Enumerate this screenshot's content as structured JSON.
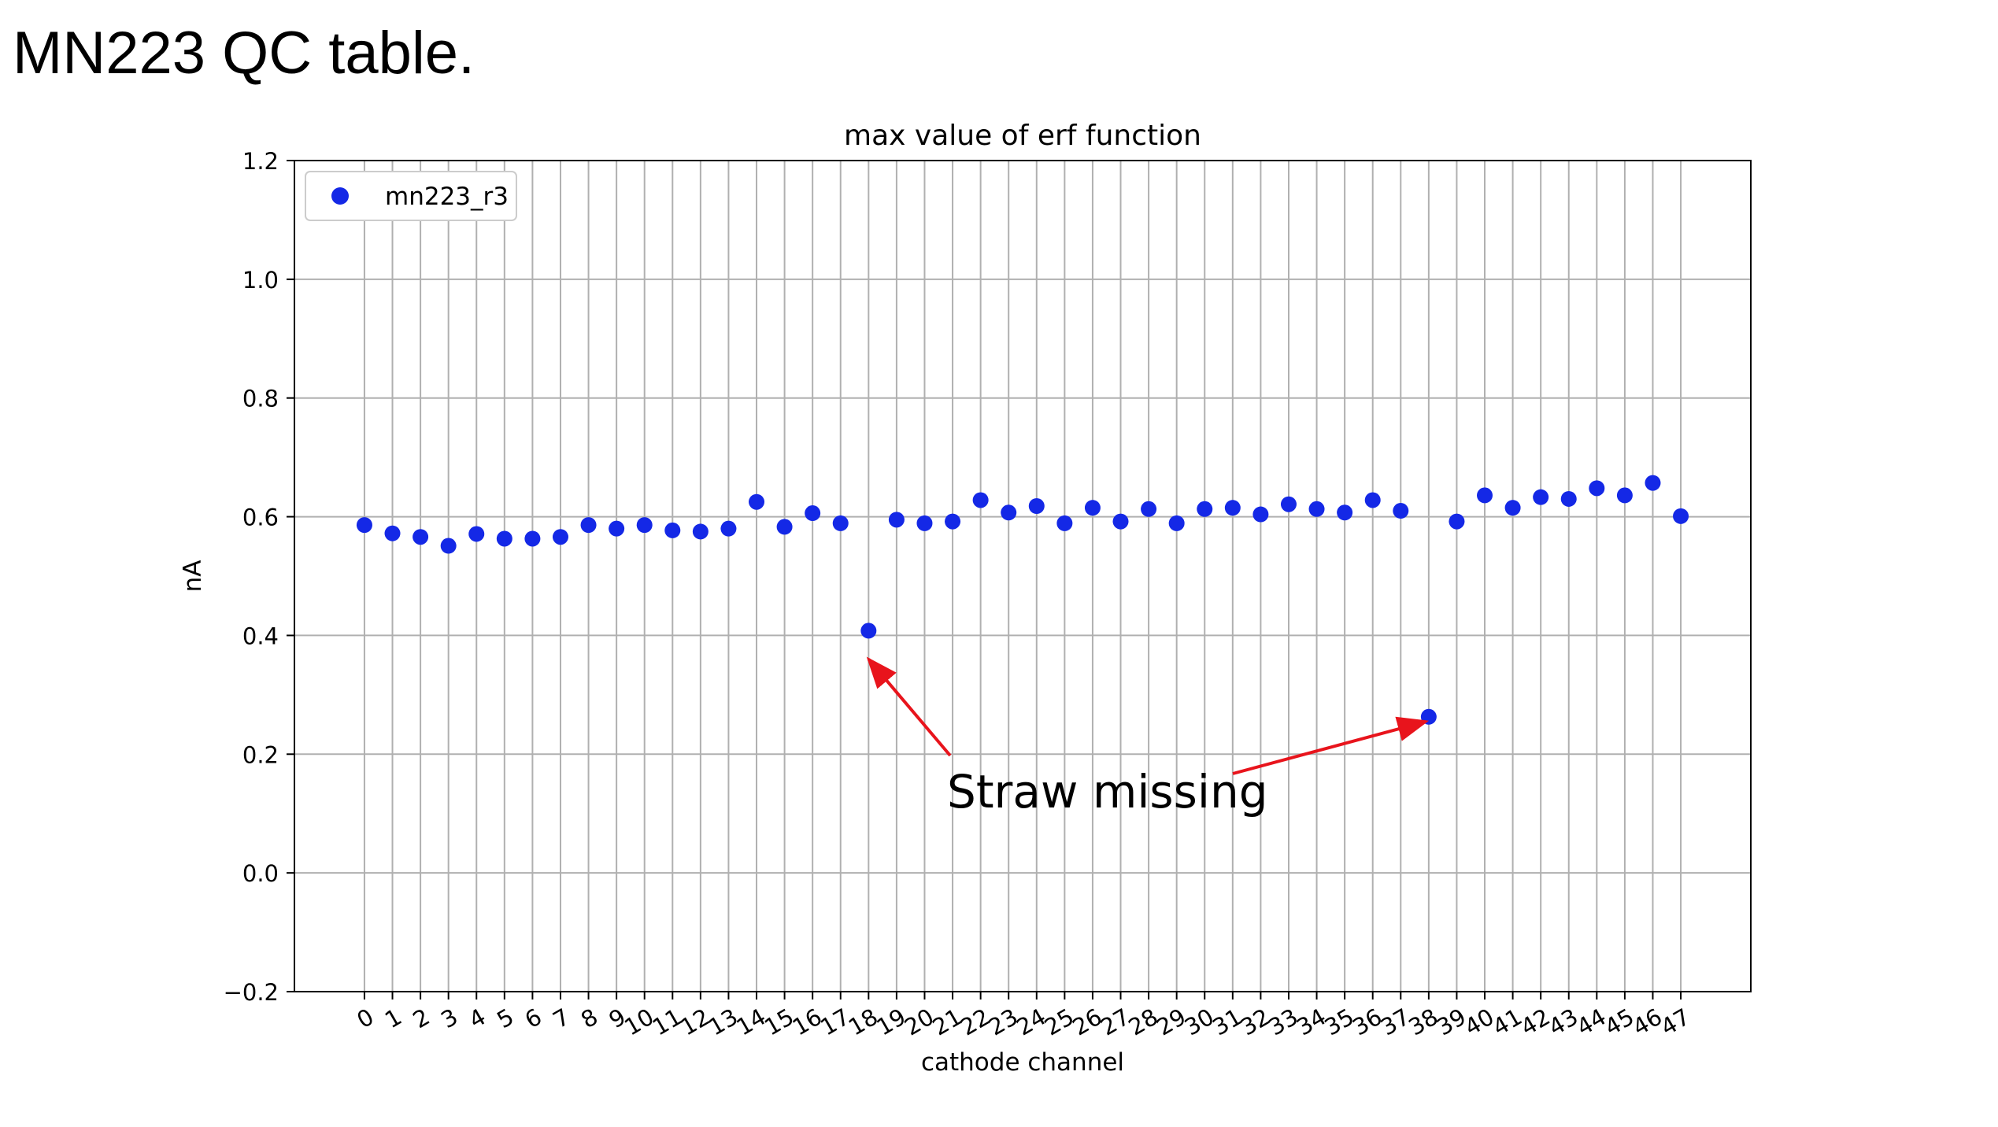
{
  "slide": {
    "title": "MN223 QC table."
  },
  "annotation": {
    "text": "Straw missing",
    "arrow_color": "#e8141c"
  },
  "chart_data": {
    "type": "scatter",
    "title": "max value of erf function",
    "xlabel": "cathode channel",
    "ylabel": "nA",
    "xlim": [
      -2.5,
      49.5
    ],
    "ylim": [
      -0.2,
      1.2
    ],
    "yticks": [
      -0.2,
      0.0,
      0.2,
      0.4,
      0.6,
      0.8,
      1.0,
      1.2
    ],
    "ytick_labels": [
      "−0.2",
      "0.0",
      "0.2",
      "0.4",
      "0.6",
      "0.8",
      "1.0",
      "1.2"
    ],
    "xticks": [
      0,
      1,
      2,
      3,
      4,
      5,
      6,
      7,
      8,
      9,
      10,
      11,
      12,
      13,
      14,
      15,
      16,
      17,
      18,
      19,
      20,
      21,
      22,
      23,
      24,
      25,
      26,
      27,
      28,
      29,
      30,
      31,
      32,
      33,
      34,
      35,
      36,
      37,
      38,
      39,
      40,
      41,
      42,
      43,
      44,
      45,
      46,
      47
    ],
    "xtick_labels": [
      "0",
      "1",
      "2",
      "3",
      "4",
      "5",
      "6",
      "7",
      "8",
      "9",
      "10",
      "11",
      "12",
      "13",
      "14",
      "15",
      "16",
      "17",
      "18",
      "19",
      "20",
      "21",
      "22",
      "23",
      "24",
      "25",
      "26",
      "27",
      "28",
      "29",
      "30",
      "31",
      "32",
      "33",
      "34",
      "35",
      "36",
      "37",
      "38",
      "39",
      "40",
      "41",
      "42",
      "43",
      "44",
      "45",
      "46",
      "47"
    ],
    "grid": true,
    "legend_position": "top-left",
    "series": [
      {
        "name": "mn223_r3",
        "color": "#1428e6",
        "x": [
          0,
          1,
          2,
          3,
          4,
          5,
          6,
          7,
          8,
          9,
          10,
          11,
          12,
          13,
          14,
          15,
          16,
          17,
          18,
          19,
          20,
          21,
          22,
          23,
          24,
          25,
          26,
          27,
          28,
          29,
          30,
          31,
          32,
          33,
          34,
          35,
          36,
          37,
          38,
          39,
          40,
          41,
          42,
          43,
          44,
          45,
          46,
          47
        ],
        "y": [
          0.586,
          0.572,
          0.566,
          0.551,
          0.571,
          0.563,
          0.563,
          0.566,
          0.586,
          0.58,
          0.586,
          0.577,
          0.575,
          0.58,
          0.625,
          0.583,
          0.606,
          0.589,
          0.408,
          0.595,
          0.589,
          0.592,
          0.628,
          0.607,
          0.618,
          0.589,
          0.615,
          0.592,
          0.613,
          0.589,
          0.613,
          0.615,
          0.604,
          0.621,
          0.613,
          0.607,
          0.628,
          0.61,
          0.263,
          0.592,
          0.636,
          0.615,
          0.633,
          0.63,
          0.648,
          0.636,
          0.657,
          0.601
        ]
      }
    ],
    "annotations": [
      {
        "text": "Straw missing",
        "targets": [
          [
            18,
            0.36
          ],
          [
            37.9,
            0.255
          ]
        ]
      }
    ]
  }
}
